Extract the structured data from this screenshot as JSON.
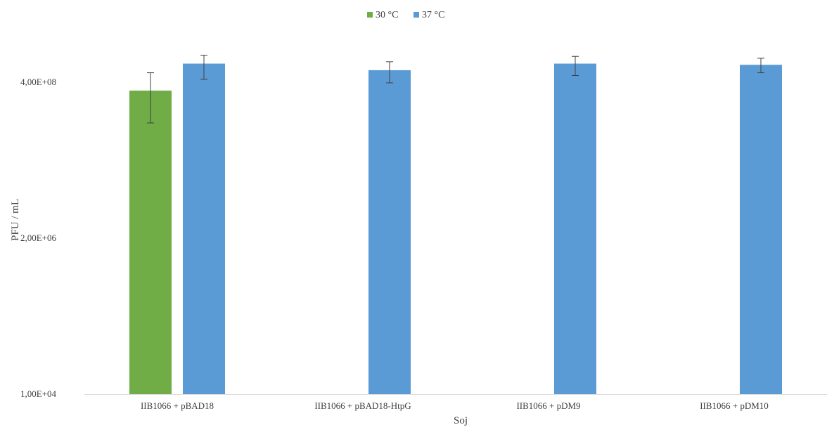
{
  "chart_data": {
    "type": "bar",
    "title": "",
    "xlabel": "Soj",
    "ylabel": "PFU / mL",
    "y_scale": "log",
    "y_ticks": [
      {
        "value": 10000,
        "label": "1,00E+04"
      },
      {
        "value": 2000000,
        "label": "2,00E+06"
      },
      {
        "value": 400000000,
        "label": "4,00E+08"
      }
    ],
    "ylim": [
      10000,
      3000000000
    ],
    "grid": false,
    "legend_position": "top",
    "categories": [
      "IIB1066 + pBAD18",
      "IIB1066 + pBAD18-HtpG",
      "IIB1066 + pDM9",
      "IIB1066 + pDM10"
    ],
    "series": [
      {
        "name": "30 °C",
        "color": "#70AD47",
        "values": [
          300000000,
          null,
          null,
          null
        ],
        "error_low": [
          100000000,
          null,
          null,
          null
        ],
        "error_high": [
          550000000,
          null,
          null,
          null
        ]
      },
      {
        "name": "37 °C",
        "color": "#5B9BD5",
        "values": [
          750000000,
          600000000,
          750000000,
          720000000
        ],
        "error_low": [
          440000000,
          390000000,
          500000000,
          550000000
        ],
        "error_high": [
          1000000000,
          800000000,
          960000000,
          900000000
        ]
      }
    ]
  }
}
